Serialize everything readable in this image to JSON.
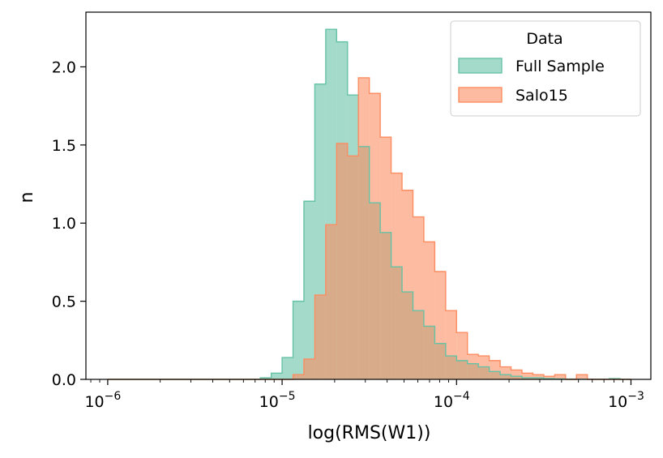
{
  "chart_data": {
    "type": "histogram",
    "xscale": "log",
    "xlabel": "log(RMS(W1))",
    "ylabel": "n",
    "xlim": [
      7.5e-07,
      0.0013
    ],
    "ylim": [
      0,
      2.35
    ],
    "x_ticks": [
      {
        "value": 1e-06,
        "base": "10",
        "exp": "−6"
      },
      {
        "value": 1e-05,
        "base": "10",
        "exp": "−5"
      },
      {
        "value": 0.0001,
        "base": "10",
        "exp": "−4"
      },
      {
        "value": 0.001,
        "base": "10",
        "exp": "−3"
      }
    ],
    "y_ticks": [
      "0.0",
      "0.5",
      "1.0",
      "1.5",
      "2.0"
    ],
    "y_tick_values": [
      0.0,
      0.5,
      1.0,
      1.5,
      2.0
    ],
    "legend": {
      "title": "Data",
      "placement": "top-right"
    },
    "bins": {
      "log10_start": -6.0,
      "log10_width": 0.0625,
      "count": 48
    },
    "series": [
      {
        "name": "Full Sample",
        "color": "#66c2a5",
        "values": [
          0,
          0,
          0,
          0,
          0,
          0,
          0,
          0,
          0,
          0,
          0,
          0,
          0,
          0,
          0.01,
          0.04,
          0.14,
          0.5,
          1.14,
          1.89,
          2.24,
          2.16,
          1.82,
          1.49,
          1.13,
          0.94,
          0.72,
          0.56,
          0.44,
          0.34,
          0.23,
          0.15,
          0.12,
          0.1,
          0.08,
          0.05,
          0.03,
          0.02,
          0.01,
          0.01,
          0.005,
          0.003,
          0.002,
          0.001,
          0.001,
          0.001,
          0.005,
          0
        ]
      },
      {
        "name": "Salo15",
        "color": "#fc8d62",
        "values": [
          0,
          0,
          0,
          0,
          0,
          0,
          0,
          0,
          0,
          0,
          0,
          0,
          0,
          0,
          0,
          0,
          0,
          0.03,
          0.13,
          0.54,
          0.99,
          1.51,
          1.43,
          1.93,
          1.83,
          1.55,
          1.32,
          1.21,
          1.04,
          0.88,
          0.69,
          0.44,
          0.3,
          0.16,
          0.15,
          0.12,
          0.08,
          0.06,
          0.04,
          0.03,
          0.02,
          0.03,
          0,
          0.03,
          0,
          0,
          0,
          0
        ]
      }
    ]
  }
}
